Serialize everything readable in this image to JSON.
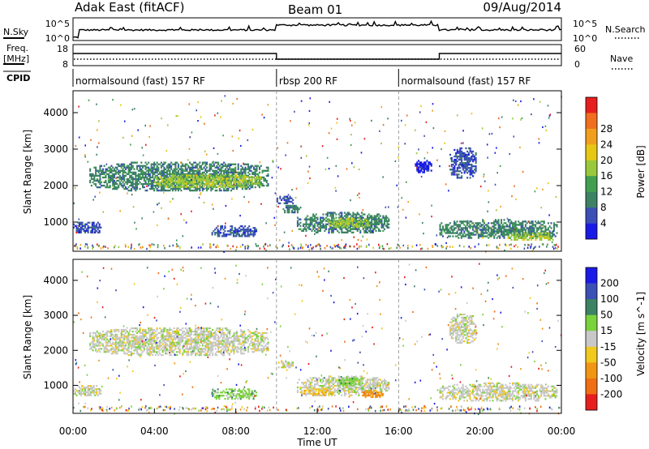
{
  "header": {
    "title": "Adak East (fitACF)",
    "beam": "Beam 01",
    "date": "09/Aug/2014"
  },
  "strip_labels": {
    "nsky": "N.Sky",
    "nsky_tick_top": "10^5",
    "nsky_tick_bottom": "10^0",
    "nsearch": "N.Search",
    "nsearch_tick_top": "10^5",
    "nsearch_tick_bottom": "10^0",
    "freq": "Freq.",
    "freq_unit": "[MHz]",
    "freq_tick_top": "18",
    "freq_tick_bottom": "8",
    "nave": "Nave",
    "nave_tick_top": "60",
    "nave_tick_bottom": "0",
    "cpid": "CPID"
  },
  "cpid_segments": [
    {
      "start_hr": 0,
      "end_hr": 10,
      "label": "normalsound (fast) 157 RF"
    },
    {
      "start_hr": 10,
      "end_hr": 16,
      "label": "rbsp 200 RF"
    },
    {
      "start_hr": 16,
      "end_hr": 24,
      "label": "normalsound (fast) 157 RF"
    }
  ],
  "colors": {
    "power": [
      "#1a1ae6",
      "#3b50b4",
      "#3d8264",
      "#40a050",
      "#9ac83c",
      "#e6c814",
      "#f0a01e",
      "#f06e1e",
      "#e61e1e"
    ],
    "velocity": [
      "#1a1ae6",
      "#3b50b4",
      "#3d8264",
      "#7ad23c",
      "#c8c8c8",
      "#f0c81e",
      "#f09614",
      "#f06e14",
      "#e61e1e"
    ]
  },
  "chart_data": [
    {
      "type": "heatmap",
      "panel": "power",
      "ylabel": "Slant Range [km]",
      "y_ticks": [
        1000,
        2000,
        3000,
        4000
      ],
      "ylim": [
        200,
        4600
      ],
      "xlim_hours": [
        0,
        24
      ],
      "colorbar_label": "Power [dB]",
      "colorbar_ticks": [
        "4",
        "8",
        "12",
        "16",
        "20",
        "24",
        "28"
      ],
      "regions": [
        {
          "t0": 0.8,
          "t1": 9.6,
          "r0": 1800,
          "r1": 2650,
          "level": 2
        },
        {
          "t0": 4.0,
          "t1": 9.2,
          "r0": 1900,
          "r1": 2300,
          "level": 4
        },
        {
          "t0": 0.0,
          "t1": 1.4,
          "r0": 650,
          "r1": 1000,
          "level": 1
        },
        {
          "t0": 10.0,
          "t1": 10.8,
          "r0": 1450,
          "r1": 1700,
          "level": 1
        },
        {
          "t0": 10.3,
          "t1": 11.2,
          "r0": 1200,
          "r1": 1450,
          "level": 2
        },
        {
          "t0": 6.8,
          "t1": 9.0,
          "r0": 550,
          "r1": 900,
          "level": 1
        },
        {
          "t0": 11.0,
          "t1": 15.5,
          "r0": 650,
          "r1": 1250,
          "level": 2
        },
        {
          "t0": 12.5,
          "t1": 14.6,
          "r0": 800,
          "r1": 1100,
          "level": 4
        },
        {
          "t0": 18.0,
          "t1": 23.8,
          "r0": 500,
          "r1": 1050,
          "level": 2
        },
        {
          "t0": 21.3,
          "t1": 23.6,
          "r0": 450,
          "r1": 700,
          "level": 4
        },
        {
          "t0": 16.8,
          "t1": 17.6,
          "r0": 2300,
          "r1": 2700,
          "level": 0
        },
        {
          "t0": 18.5,
          "t1": 19.8,
          "r0": 2150,
          "r1": 3050,
          "level": 1
        }
      ]
    },
    {
      "type": "heatmap",
      "panel": "velocity",
      "ylabel": "Slant Range [km]",
      "y_ticks": [
        1000,
        2000,
        3000,
        4000
      ],
      "ylim": [
        200,
        4600
      ],
      "xlim_hours": [
        0,
        24
      ],
      "colorbar_label": "Velocity [m s^-1]",
      "colorbar_ticks": [
        "200",
        "100",
        "50",
        "15",
        "-15",
        "-50",
        "-100",
        "-200"
      ],
      "x_ticks": [
        "00:00",
        "04:00",
        "08:00",
        "12:00",
        "16:00",
        "20:00",
        "00:00"
      ],
      "xlabel": "Time UT",
      "regions": [
        {
          "t0": 0.8,
          "t1": 9.6,
          "r0": 1800,
          "r1": 2650,
          "level": 4
        },
        {
          "t0": 0.0,
          "t1": 1.4,
          "r0": 650,
          "r1": 1000,
          "level": 4
        },
        {
          "t0": 10.0,
          "t1": 10.8,
          "r0": 1450,
          "r1": 1700,
          "level": 4
        },
        {
          "t0": 6.8,
          "t1": 9.0,
          "r0": 550,
          "r1": 900,
          "level": 3
        },
        {
          "t0": 11.0,
          "t1": 15.5,
          "r0": 650,
          "r1": 1250,
          "level": 4
        },
        {
          "t0": 13.0,
          "t1": 14.2,
          "r0": 950,
          "r1": 1250,
          "level": 3
        },
        {
          "t0": 11.2,
          "t1": 12.8,
          "r0": 650,
          "r1": 900,
          "level": 5
        },
        {
          "t0": 14.2,
          "t1": 15.2,
          "r0": 600,
          "r1": 850,
          "level": 6
        },
        {
          "t0": 18.0,
          "t1": 23.8,
          "r0": 500,
          "r1": 1050,
          "level": 4
        },
        {
          "t0": 18.5,
          "t1": 19.8,
          "r0": 2150,
          "r1": 3050,
          "level": 4
        }
      ]
    }
  ]
}
